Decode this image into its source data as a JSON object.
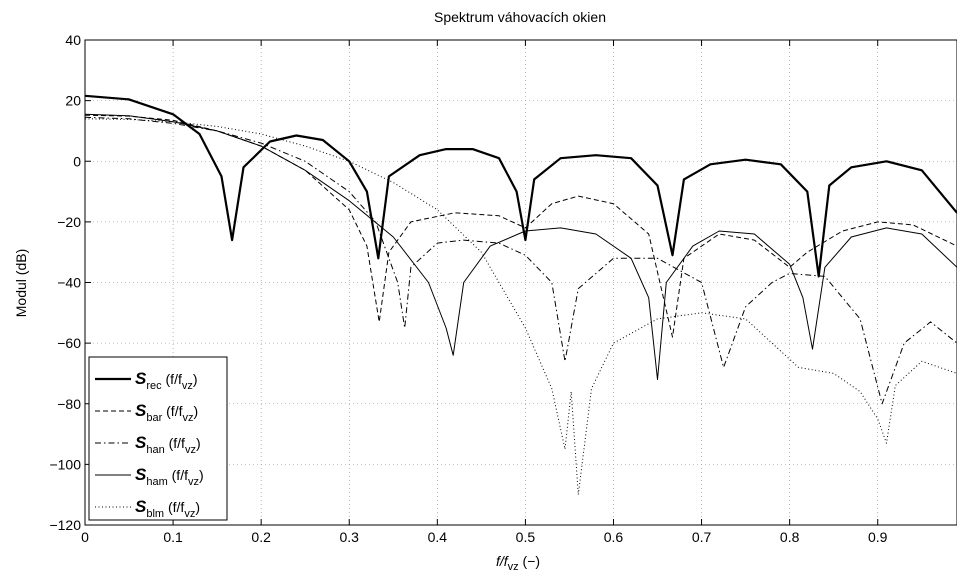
{
  "chart_data": {
    "type": "line",
    "title": "Spektrum váhovacích okien",
    "xlabel": {
      "main": "f/f",
      "sub": "vz",
      "suffix": " (−)"
    },
    "ylabel": "Modul (dB)",
    "xlim": [
      0,
      0.99
    ],
    "ylim": [
      -120,
      40
    ],
    "xticks": [
      "0",
      "0.1",
      "0.2",
      "0.3",
      "0.4",
      "0.5",
      "0.6",
      "0.7",
      "0.8",
      "0.9"
    ],
    "yticks": [
      "40",
      "20",
      "0",
      "−20",
      "−40",
      "−60",
      "−80",
      "−100",
      "−120"
    ],
    "grid": true,
    "legend_position": "bottom-left",
    "series": [
      {
        "symbol": "S",
        "sub": "rec",
        "arg": "(f/f",
        "argsub": "vz",
        "argend": ")",
        "style": "solid-thick",
        "x": [
          0,
          0.05,
          0.1,
          0.13,
          0.155,
          0.167,
          0.18,
          0.21,
          0.24,
          0.27,
          0.3,
          0.32,
          0.333,
          0.345,
          0.38,
          0.41,
          0.44,
          0.47,
          0.49,
          0.5,
          0.51,
          0.54,
          0.58,
          0.62,
          0.65,
          0.667,
          0.68,
          0.71,
          0.75,
          0.79,
          0.82,
          0.833,
          0.845,
          0.87,
          0.91,
          0.95,
          0.99
        ],
        "y": [
          21.6,
          20.4,
          15.5,
          9,
          -5,
          -26,
          -2,
          6.5,
          8.5,
          7,
          0,
          -10,
          -32,
          -5,
          2,
          4,
          4,
          1,
          -10,
          -26,
          -6,
          1,
          2,
          1,
          -8,
          -31,
          -6,
          -1,
          0.5,
          -1,
          -10,
          -38,
          -8,
          -2,
          0,
          -3,
          -17
        ]
      },
      {
        "symbol": "S",
        "sub": "bar",
        "arg": "(f/f",
        "argsub": "vz",
        "argend": ")",
        "style": "dashed",
        "x": [
          0,
          0.05,
          0.1,
          0.15,
          0.2,
          0.25,
          0.3,
          0.32,
          0.334,
          0.345,
          0.37,
          0.42,
          0.47,
          0.5,
          0.53,
          0.56,
          0.6,
          0.64,
          0.667,
          0.68,
          0.72,
          0.76,
          0.8,
          0.82,
          0.86,
          0.9,
          0.94,
          0.99
        ],
        "y": [
          15.2,
          14.9,
          13.5,
          10,
          5,
          -3,
          -16,
          -28,
          -53,
          -30,
          -20,
          -17,
          -18,
          -22,
          -14,
          -11.5,
          -14,
          -24,
          -58,
          -32,
          -24,
          -26,
          -35,
          -30,
          -23,
          -20,
          -21,
          -28
        ]
      },
      {
        "symbol": "S",
        "sub": "han",
        "arg": "(f/f",
        "argsub": "vz",
        "argend": ")",
        "style": "dashdot",
        "x": [
          0,
          0.05,
          0.1,
          0.15,
          0.2,
          0.25,
          0.3,
          0.33,
          0.355,
          0.363,
          0.37,
          0.4,
          0.43,
          0.47,
          0.5,
          0.53,
          0.545,
          0.56,
          0.6,
          0.65,
          0.7,
          0.725,
          0.75,
          0.78,
          0.8,
          0.84,
          0.88,
          0.905,
          0.93,
          0.96,
          0.99
        ],
        "y": [
          14.5,
          14,
          12.5,
          10,
          6,
          0,
          -10,
          -20,
          -40,
          -55,
          -35,
          -27,
          -26,
          -27,
          -31,
          -40,
          -66,
          -42,
          -32,
          -32,
          -40,
          -68,
          -48,
          -40,
          -37,
          -38,
          -52,
          -80,
          -60,
          -53,
          -60
        ]
      },
      {
        "symbol": "S",
        "sub": "ham",
        "arg": "(f/f",
        "argsub": "vz",
        "argend": ")",
        "style": "solid-thin",
        "x": [
          0,
          0.05,
          0.1,
          0.15,
          0.2,
          0.25,
          0.3,
          0.35,
          0.39,
          0.41,
          0.418,
          0.43,
          0.46,
          0.5,
          0.54,
          0.58,
          0.62,
          0.64,
          0.65,
          0.66,
          0.69,
          0.72,
          0.76,
          0.8,
          0.815,
          0.826,
          0.84,
          0.87,
          0.91,
          0.95,
          0.99
        ],
        "y": [
          15.5,
          15,
          13,
          10,
          5,
          -3,
          -13,
          -25,
          -40,
          -55,
          -64,
          -40,
          -28,
          -23,
          -22,
          -24,
          -32,
          -45,
          -72,
          -40,
          -28,
          -23,
          -24,
          -34,
          -45,
          -62,
          -35,
          -25,
          -22,
          -24,
          -35
        ]
      },
      {
        "symbol": "S",
        "sub": "blm",
        "arg": "(f/f",
        "argsub": "vz",
        "argend": ")",
        "style": "dotted",
        "x": [
          0,
          0.05,
          0.1,
          0.15,
          0.2,
          0.25,
          0.3,
          0.35,
          0.4,
          0.45,
          0.5,
          0.53,
          0.545,
          0.552,
          0.56,
          0.575,
          0.6,
          0.65,
          0.7,
          0.75,
          0.78,
          0.81,
          0.85,
          0.88,
          0.9,
          0.91,
          0.92,
          0.95,
          0.99
        ],
        "y": [
          14,
          13.8,
          13,
          11.5,
          9,
          5,
          0,
          -7,
          -16,
          -30,
          -55,
          -75,
          -95,
          -76,
          -110,
          -75,
          -60,
          -52,
          -50,
          -52,
          -60,
          -68,
          -70,
          -76,
          -85,
          -93,
          -74,
          -66,
          -70
        ]
      }
    ]
  }
}
